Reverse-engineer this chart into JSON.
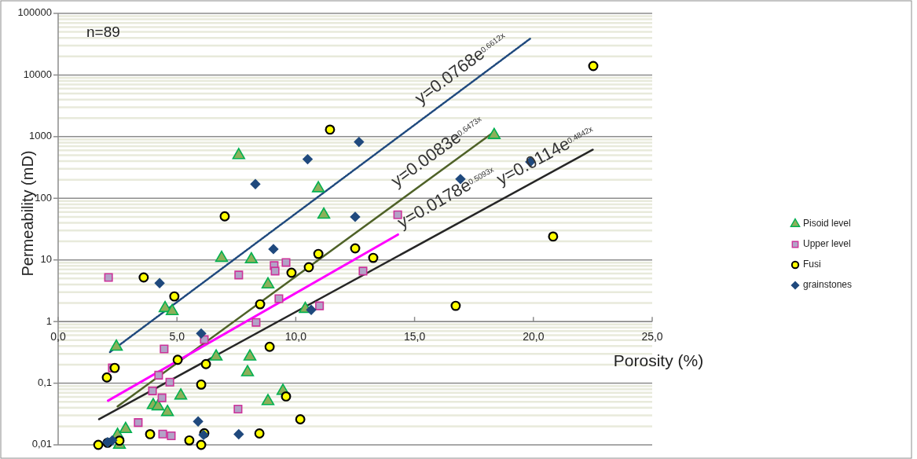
{
  "chart_data": {
    "type": "scatter",
    "xlabel": "Porosity (%)",
    "ylabel": "Permeability (mD)",
    "xlim": [
      0,
      25
    ],
    "xticks": [
      {
        "value": 0,
        "label": "0,0"
      },
      {
        "value": 5,
        "label": "5,0"
      },
      {
        "value": 10,
        "label": "10,0"
      },
      {
        "value": 15,
        "label": "15,0"
      },
      {
        "value": 20,
        "label": "20,0"
      },
      {
        "value": 25,
        "label": "25,0"
      }
    ],
    "ylim": [
      0.01,
      100000
    ],
    "yticks": [
      {
        "value": 0.01,
        "label": "0,01"
      },
      {
        "value": 0.1,
        "label": "0,1"
      },
      1,
      10,
      100,
      1000,
      10000,
      100000
    ],
    "log": "y",
    "grid": "y",
    "legend": "right",
    "annotations": [
      "n=89",
      {
        "text": "y=0.0768e$^{0.6612x}$",
        "x": 17.4,
        "y": 7600
      },
      {
        "text": "y=0.0083e$^{0.6473x}$",
        "x": 16.4,
        "y": 339
      },
      {
        "text": "y=0.0178e$^{0.5093x}$",
        "x": 14.3,
        "y": 25.8
      },
      {
        "text": "y=0.0114e$^{0.4842x}$",
        "x": 20.87,
        "y": 279
      }
    ],
    "series": [
      {
        "type": "line",
        "color": "#1f497d",
        "line_style": "dotted",
        "x": [
          2.18,
          19.87
        ],
        "values": [
          0.32,
          39000
        ]
      },
      {
        "type": "line",
        "color": "#4f6228",
        "line_style": "solid",
        "x": [
          2.5,
          18.3
        ],
        "values": [
          0.042,
          1160
        ]
      },
      {
        "type": "line",
        "color": "#ff00ff",
        "line_style": "solid",
        "x": [
          2.1,
          14.3
        ],
        "values": [
          0.052,
          25.8
        ]
      },
      {
        "type": "line",
        "color": "#262626",
        "line_style": "solid",
        "x": [
          1.72,
          22.5
        ],
        "values": [
          0.026,
          614
        ]
      },
      {
        "name": "Pisoid level",
        "marker": "triangle",
        "color": "#8cb05a",
        "x": [
          2.45,
          2.58,
          2.5,
          2.84,
          4.0,
          4.2,
          4.6,
          4.5,
          4.8,
          5.16,
          6.65,
          6.88,
          7.6,
          7.97,
          8.07,
          8.13,
          8.83,
          8.83,
          9.46,
          10.4,
          10.95,
          11.18,
          18.35
        ],
        "values": [
          0.39,
          0.01,
          0.0145,
          0.018,
          0.044,
          0.042,
          0.034,
          1.65,
          1.47,
          0.063,
          0.27,
          10.8,
          500,
          0.15,
          0.27,
          10.2,
          0.051,
          4.0,
          0.075,
          1.6,
          145,
          54,
          1060
        ]
      },
      {
        "name": "Upper level",
        "marker": "square",
        "color": "#b3a2c7",
        "x": [
          2.12,
          2.28,
          3.37,
          3.97,
          4.23,
          4.46,
          4.37,
          4.4,
          4.7,
          4.76,
          6.15,
          7.57,
          7.6,
          8.33,
          9.09,
          9.13,
          9.29,
          9.59,
          11.0,
          12.83,
          14.29
        ],
        "values": [
          5.2,
          0.177,
          0.023,
          0.075,
          0.135,
          0.36,
          0.058,
          0.015,
          0.104,
          0.014,
          0.51,
          0.038,
          5.7,
          0.97,
          8.1,
          6.6,
          2.35,
          9.1,
          1.8,
          6.6,
          54
        ]
      },
      {
        "name": "Fusi",
        "marker": "circle",
        "color": "#ffff00",
        "x": [
          1.69,
          2.05,
          2.38,
          2.08,
          2.58,
          3.6,
          3.87,
          4.89,
          5.03,
          5.52,
          6.02,
          6.02,
          6.15,
          6.22,
          7.01,
          8.5,
          8.47,
          8.9,
          9.59,
          9.82,
          10.19,
          10.55,
          10.95,
          11.44,
          12.5,
          13.26,
          16.73,
          20.83,
          22.52
        ],
        "values": [
          0.01,
          0.124,
          0.177,
          0.0108,
          0.0117,
          5.2,
          0.0149,
          2.56,
          0.24,
          0.0118,
          0.01,
          0.095,
          0.0154,
          0.204,
          51,
          1.91,
          0.0153,
          0.39,
          0.061,
          6.2,
          0.026,
          7.6,
          12.5,
          1300,
          15.4,
          10.8,
          1.8,
          24,
          14000
        ]
      },
      {
        "name": "grainstones",
        "marker": "diamond",
        "color": "#1f497d",
        "x": [
          2.08,
          2.28,
          4.27,
          5.89,
          6.02,
          6.12,
          7.6,
          8.3,
          9.06,
          10.5,
          10.65,
          12.5,
          12.66,
          16.93,
          19.87
        ],
        "values": [
          0.011,
          0.0118,
          4.2,
          0.024,
          0.64,
          0.0145,
          0.0149,
          170,
          15,
          430,
          1.55,
          50,
          820,
          205,
          390
        ]
      }
    ]
  }
}
